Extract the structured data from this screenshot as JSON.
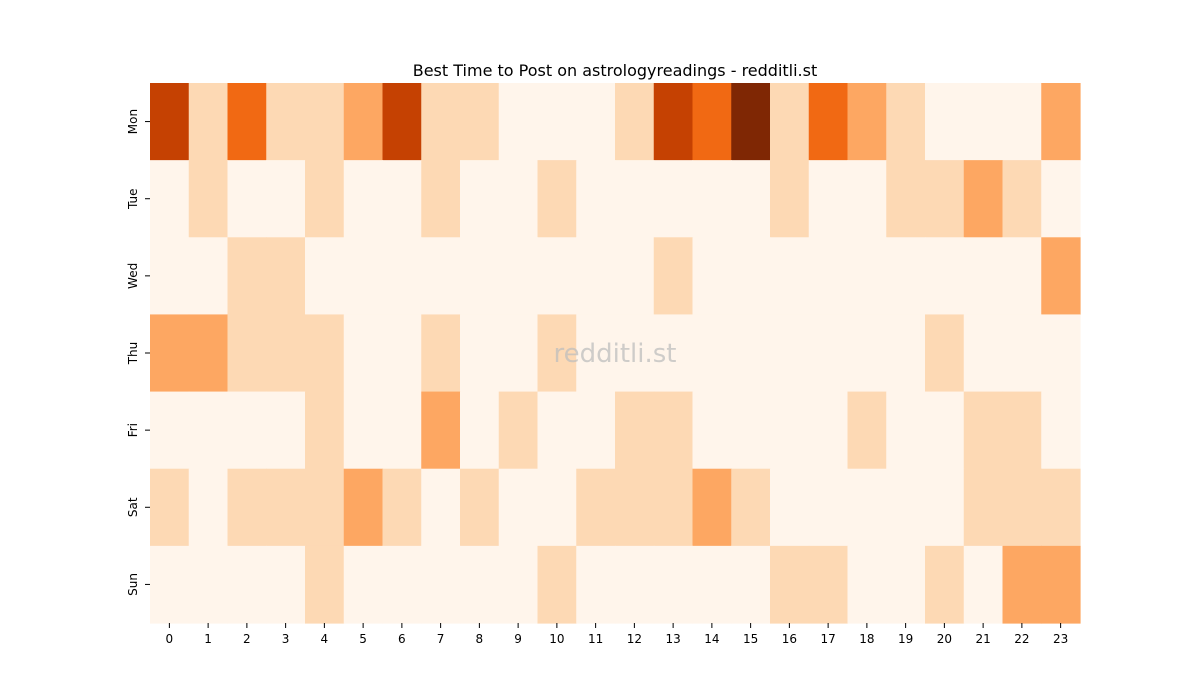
{
  "chart_data": {
    "type": "heatmap",
    "title": "Best Time to Post on astrologyreadings - redditli.st",
    "watermark": "redditli.st",
    "xlabel": "",
    "ylabel": "",
    "x": [
      "0",
      "1",
      "2",
      "3",
      "4",
      "5",
      "6",
      "7",
      "8",
      "9",
      "10",
      "11",
      "12",
      "13",
      "14",
      "15",
      "16",
      "17",
      "18",
      "19",
      "20",
      "21",
      "22",
      "23"
    ],
    "y": [
      "Mon",
      "Tue",
      "Wed",
      "Thu",
      "Fri",
      "Sat",
      "Sun"
    ],
    "values": [
      [
        5,
        1,
        4,
        1,
        1,
        2,
        5,
        1,
        1,
        0,
        0,
        0,
        1,
        5,
        4,
        6,
        1,
        4,
        2,
        1,
        0,
        0,
        0,
        2
      ],
      [
        0,
        1,
        0,
        0,
        1,
        0,
        0,
        1,
        0,
        0,
        1,
        0,
        0,
        0,
        0,
        0,
        1,
        0,
        0,
        1,
        1,
        2,
        1,
        0
      ],
      [
        0,
        0,
        1,
        1,
        0,
        0,
        0,
        0,
        0,
        0,
        0,
        0,
        0,
        1,
        0,
        0,
        0,
        0,
        0,
        0,
        0,
        0,
        0,
        2
      ],
      [
        2,
        2,
        1,
        1,
        1,
        0,
        0,
        1,
        0,
        0,
        1,
        0,
        0,
        0,
        0,
        0,
        0,
        0,
        0,
        0,
        1,
        0,
        0,
        0
      ],
      [
        0,
        0,
        0,
        0,
        1,
        0,
        0,
        2,
        0,
        1,
        0,
        0,
        1,
        1,
        0,
        0,
        0,
        0,
        1,
        0,
        0,
        1,
        1,
        0
      ],
      [
        1,
        0,
        1,
        1,
        1,
        2,
        1,
        0,
        1,
        0,
        0,
        1,
        1,
        1,
        2,
        1,
        0,
        0,
        0,
        0,
        0,
        1,
        1,
        1
      ],
      [
        0,
        0,
        0,
        0,
        1,
        0,
        0,
        0,
        0,
        0,
        1,
        0,
        0,
        0,
        0,
        0,
        1,
        1,
        0,
        0,
        1,
        0,
        2,
        2
      ]
    ],
    "colormap": [
      "#fff5eb",
      "#fdd9b4",
      "#fda762",
      "#f3701b",
      "#f16913",
      "#c54102",
      "#7f2704"
    ]
  }
}
